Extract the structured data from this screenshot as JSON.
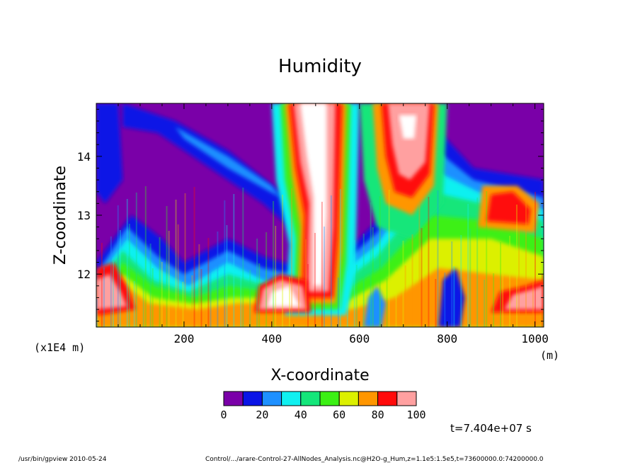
{
  "chart_data": {
    "type": "heatmap",
    "title": "Humidity",
    "xlabel": "X-coordinate",
    "ylabel": "Z-coordinate",
    "x_unit": "(m)",
    "y_unit": "(x1E4 m)",
    "xlim": [
      0,
      1020
    ],
    "ylim": [
      11.1,
      14.9
    ],
    "x_ticks": [
      200,
      400,
      600,
      800,
      1000
    ],
    "y_ticks": [
      12,
      13,
      14
    ],
    "time_label": "t=7.404e+07 s",
    "colorbar": {
      "levels": [
        0,
        10,
        20,
        30,
        40,
        50,
        60,
        70,
        80,
        90,
        100
      ],
      "tick_labels": [
        "0",
        "20",
        "40",
        "60",
        "80",
        "100"
      ],
      "colors": [
        "#7a00a8",
        "#0a14e6",
        "#1e90ff",
        "#10f0f0",
        "#14e67a",
        "#3cf014",
        "#dcf000",
        "#ff9600",
        "#ff0a0a",
        "#ffa0a0"
      ]
    },
    "features": [
      {
        "x": [
          0,
          1020
        ],
        "z": [
          14.9,
          11.1
        ],
        "note": "mostly dry aloft (< 10)"
      },
      {
        "x": [
          430,
          560
        ],
        "z": [
          11.3,
          14.9
        ],
        "level": 100
      },
      {
        "x": [
          680,
          760
        ],
        "z": [
          13.0,
          14.9
        ],
        "level": 100
      },
      {
        "x": [
          360,
          480
        ],
        "z": [
          11.4,
          11.9
        ],
        "level": 100
      },
      {
        "x": [
          0,
          60
        ],
        "z": [
          11.4,
          12.1
        ],
        "level": 90
      },
      {
        "x": [
          920,
          1020
        ],
        "z": [
          11.4,
          11.8
        ],
        "level": 90
      },
      {
        "x": [
          880,
          1000
        ],
        "z": [
          12.9,
          13.4
        ],
        "level": 80
      }
    ]
  },
  "footer": {
    "left": "/usr/bin/gpview  2010-05-24",
    "right": "Control/.../arare-Control-27-AllNodes_Analysis.nc@H2O-g_Hum,z=1.1e5:1.5e5,t=73600000.0:74200000.0"
  }
}
